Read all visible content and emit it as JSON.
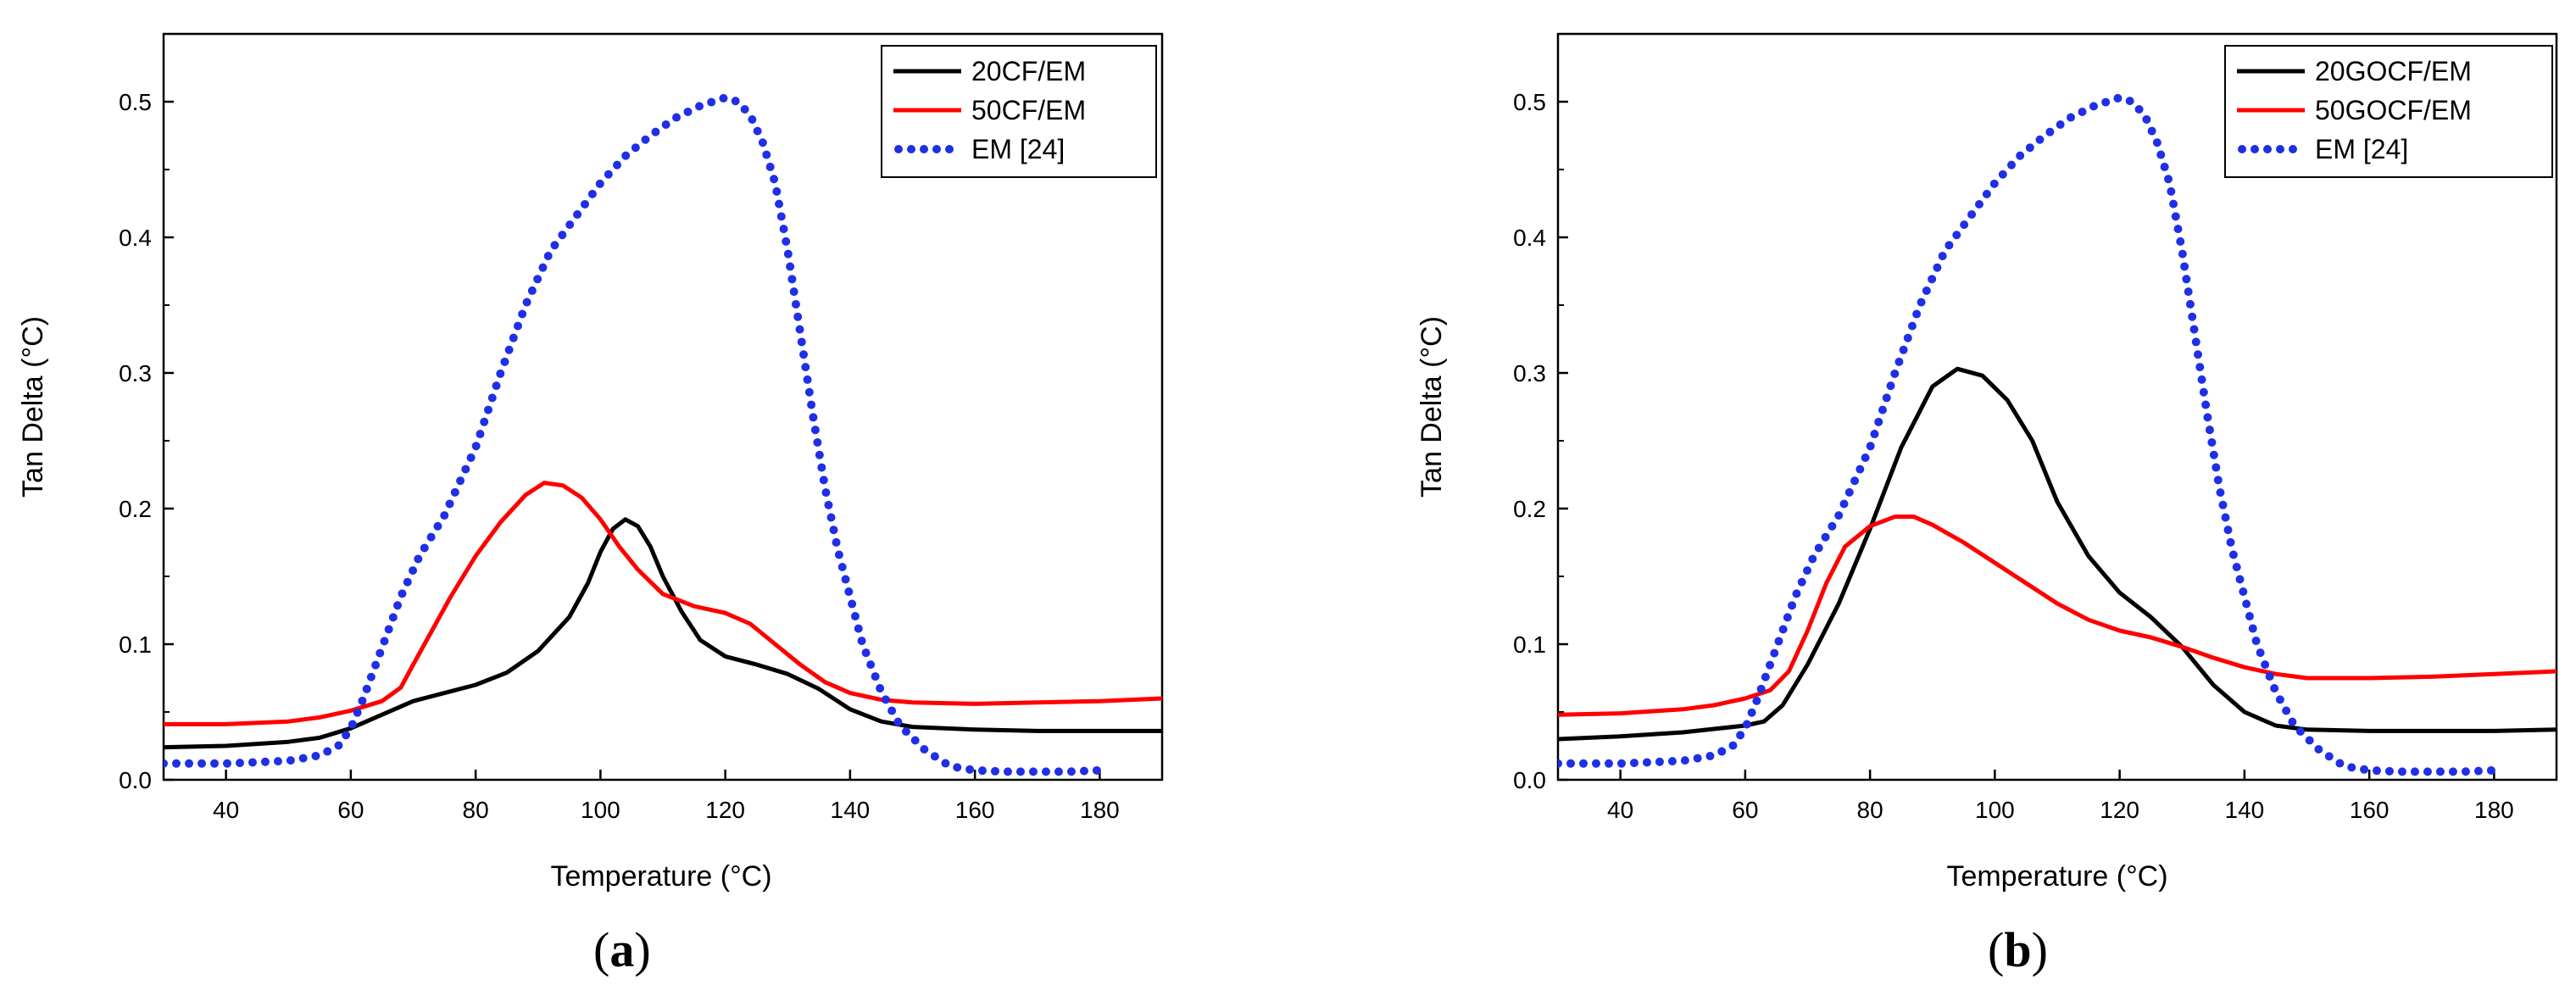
{
  "chart_data": [
    {
      "type": "line",
      "panel_label": "a",
      "xlabel": "Temperature (°C)",
      "ylabel": "Tan Delta (°C)",
      "xlim": [
        30,
        190
      ],
      "ylim": [
        0,
        0.55
      ],
      "xticks": [
        40,
        60,
        80,
        100,
        120,
        140,
        160,
        180
      ],
      "yticks": [
        0.0,
        0.1,
        0.2,
        0.3,
        0.4,
        0.5
      ],
      "legend_position": "top-right",
      "grid": false,
      "series": [
        {
          "name": "20CF/EM",
          "color": "#000000",
          "style": "solid",
          "points": [
            [
              30,
              0.024
            ],
            [
              40,
              0.025
            ],
            [
              50,
              0.028
            ],
            [
              55,
              0.031
            ],
            [
              60,
              0.038
            ],
            [
              65,
              0.048
            ],
            [
              70,
              0.058
            ],
            [
              75,
              0.064
            ],
            [
              80,
              0.07
            ],
            [
              85,
              0.079
            ],
            [
              90,
              0.095
            ],
            [
              95,
              0.12
            ],
            [
              98,
              0.145
            ],
            [
              100,
              0.168
            ],
            [
              102,
              0.185
            ],
            [
              104,
              0.192
            ],
            [
              106,
              0.187
            ],
            [
              108,
              0.172
            ],
            [
              110,
              0.15
            ],
            [
              113,
              0.124
            ],
            [
              116,
              0.103
            ],
            [
              120,
              0.091
            ],
            [
              125,
              0.085
            ],
            [
              130,
              0.078
            ],
            [
              135,
              0.067
            ],
            [
              140,
              0.052
            ],
            [
              145,
              0.043
            ],
            [
              150,
              0.039
            ],
            [
              160,
              0.037
            ],
            [
              170,
              0.036
            ],
            [
              180,
              0.036
            ],
            [
              190,
              0.036
            ]
          ]
        },
        {
          "name": "50CF/EM",
          "color": "#ff0000",
          "style": "solid",
          "points": [
            [
              30,
              0.041
            ],
            [
              40,
              0.041
            ],
            [
              50,
              0.043
            ],
            [
              55,
              0.046
            ],
            [
              60,
              0.051
            ],
            [
              65,
              0.058
            ],
            [
              68,
              0.068
            ],
            [
              70,
              0.085
            ],
            [
              73,
              0.11
            ],
            [
              76,
              0.135
            ],
            [
              80,
              0.165
            ],
            [
              84,
              0.19
            ],
            [
              88,
              0.21
            ],
            [
              91,
              0.219
            ],
            [
              94,
              0.217
            ],
            [
              97,
              0.208
            ],
            [
              100,
              0.192
            ],
            [
              103,
              0.172
            ],
            [
              106,
              0.155
            ],
            [
              110,
              0.137
            ],
            [
              115,
              0.128
            ],
            [
              120,
              0.123
            ],
            [
              124,
              0.115
            ],
            [
              128,
              0.1
            ],
            [
              132,
              0.085
            ],
            [
              136,
              0.072
            ],
            [
              140,
              0.064
            ],
            [
              145,
              0.059
            ],
            [
              150,
              0.057
            ],
            [
              160,
              0.056
            ],
            [
              170,
              0.057
            ],
            [
              180,
              0.058
            ],
            [
              190,
              0.06
            ]
          ]
        },
        {
          "name": "EM [24]",
          "color": "#1f2fe6",
          "style": "dotted",
          "points": [
            [
              30,
              0.012
            ],
            [
              40,
              0.012
            ],
            [
              50,
              0.014
            ],
            [
              55,
              0.018
            ],
            [
              58,
              0.025
            ],
            [
              60,
              0.038
            ],
            [
              62,
              0.06
            ],
            [
              64,
              0.085
            ],
            [
              66,
              0.11
            ],
            [
              68,
              0.135
            ],
            [
              71,
              0.165
            ],
            [
              75,
              0.195
            ],
            [
              80,
              0.245
            ],
            [
              84,
              0.3
            ],
            [
              88,
              0.35
            ],
            [
              92,
              0.39
            ],
            [
              96,
              0.415
            ],
            [
              100,
              0.44
            ],
            [
              104,
              0.46
            ],
            [
              108,
              0.475
            ],
            [
              112,
              0.488
            ],
            [
              116,
              0.497
            ],
            [
              120,
              0.503
            ],
            [
              122,
              0.5
            ],
            [
              124,
              0.49
            ],
            [
              126,
              0.47
            ],
            [
              128,
              0.44
            ],
            [
              130,
              0.39
            ],
            [
              132,
              0.33
            ],
            [
              134,
              0.27
            ],
            [
              136,
              0.215
            ],
            [
              138,
              0.17
            ],
            [
              140,
              0.135
            ],
            [
              142,
              0.1
            ],
            [
              145,
              0.065
            ],
            [
              148,
              0.04
            ],
            [
              152,
              0.022
            ],
            [
              156,
              0.01
            ],
            [
              160,
              0.007
            ],
            [
              165,
              0.006
            ],
            [
              170,
              0.006
            ],
            [
              175,
              0.006
            ],
            [
              180,
              0.007
            ]
          ]
        }
      ]
    },
    {
      "type": "line",
      "panel_label": "b",
      "xlabel": "Temperature (°C)",
      "ylabel": "Tan Delta (°C)",
      "xlim": [
        30,
        190
      ],
      "ylim": [
        0,
        0.55
      ],
      "xticks": [
        40,
        60,
        80,
        100,
        120,
        140,
        160,
        180
      ],
      "yticks": [
        0.0,
        0.1,
        0.2,
        0.3,
        0.4,
        0.5
      ],
      "legend_position": "top-right",
      "grid": false,
      "series": [
        {
          "name": "20GOCF/EM",
          "color": "#000000",
          "style": "solid",
          "points": [
            [
              30,
              0.03
            ],
            [
              40,
              0.032
            ],
            [
              50,
              0.035
            ],
            [
              60,
              0.04
            ],
            [
              63,
              0.043
            ],
            [
              66,
              0.055
            ],
            [
              70,
              0.085
            ],
            [
              75,
              0.13
            ],
            [
              80,
              0.185
            ],
            [
              85,
              0.245
            ],
            [
              90,
              0.29
            ],
            [
              94,
              0.303
            ],
            [
              98,
              0.298
            ],
            [
              102,
              0.28
            ],
            [
              106,
              0.25
            ],
            [
              110,
              0.205
            ],
            [
              115,
              0.165
            ],
            [
              120,
              0.138
            ],
            [
              125,
              0.12
            ],
            [
              130,
              0.098
            ],
            [
              135,
              0.07
            ],
            [
              140,
              0.05
            ],
            [
              145,
              0.04
            ],
            [
              150,
              0.037
            ],
            [
              160,
              0.036
            ],
            [
              170,
              0.036
            ],
            [
              180,
              0.036
            ],
            [
              190,
              0.037
            ]
          ]
        },
        {
          "name": "50GOCF/EM",
          "color": "#ff0000",
          "style": "solid",
          "points": [
            [
              30,
              0.048
            ],
            [
              40,
              0.049
            ],
            [
              50,
              0.052
            ],
            [
              55,
              0.055
            ],
            [
              60,
              0.06
            ],
            [
              64,
              0.066
            ],
            [
              67,
              0.08
            ],
            [
              70,
              0.11
            ],
            [
              73,
              0.145
            ],
            [
              76,
              0.172
            ],
            [
              80,
              0.187
            ],
            [
              84,
              0.194
            ],
            [
              87,
              0.194
            ],
            [
              90,
              0.188
            ],
            [
              95,
              0.175
            ],
            [
              100,
              0.16
            ],
            [
              105,
              0.145
            ],
            [
              110,
              0.13
            ],
            [
              115,
              0.118
            ],
            [
              120,
              0.11
            ],
            [
              125,
              0.105
            ],
            [
              130,
              0.098
            ],
            [
              135,
              0.09
            ],
            [
              140,
              0.083
            ],
            [
              145,
              0.078
            ],
            [
              150,
              0.075
            ],
            [
              160,
              0.075
            ],
            [
              170,
              0.076
            ],
            [
              180,
              0.078
            ],
            [
              190,
              0.08
            ]
          ]
        },
        {
          "name": "EM [24]",
          "color": "#1f2fe6",
          "style": "dotted",
          "points": [
            [
              30,
              0.012
            ],
            [
              40,
              0.012
            ],
            [
              50,
              0.014
            ],
            [
              55,
              0.018
            ],
            [
              58,
              0.025
            ],
            [
              60,
              0.038
            ],
            [
              62,
              0.06
            ],
            [
              64,
              0.085
            ],
            [
              66,
              0.11
            ],
            [
              68,
              0.135
            ],
            [
              71,
              0.165
            ],
            [
              75,
              0.195
            ],
            [
              80,
              0.245
            ],
            [
              84,
              0.3
            ],
            [
              88,
              0.35
            ],
            [
              92,
              0.39
            ],
            [
              96,
              0.415
            ],
            [
              100,
              0.44
            ],
            [
              104,
              0.46
            ],
            [
              108,
              0.475
            ],
            [
              112,
              0.488
            ],
            [
              116,
              0.497
            ],
            [
              120,
              0.503
            ],
            [
              122,
              0.5
            ],
            [
              124,
              0.49
            ],
            [
              126,
              0.47
            ],
            [
              128,
              0.44
            ],
            [
              130,
              0.39
            ],
            [
              132,
              0.33
            ],
            [
              134,
              0.27
            ],
            [
              136,
              0.215
            ],
            [
              138,
              0.17
            ],
            [
              140,
              0.135
            ],
            [
              142,
              0.1
            ],
            [
              145,
              0.065
            ],
            [
              148,
              0.04
            ],
            [
              152,
              0.022
            ],
            [
              156,
              0.01
            ],
            [
              160,
              0.007
            ],
            [
              165,
              0.006
            ],
            [
              170,
              0.006
            ],
            [
              175,
              0.006
            ],
            [
              180,
              0.007
            ]
          ]
        }
      ]
    }
  ]
}
